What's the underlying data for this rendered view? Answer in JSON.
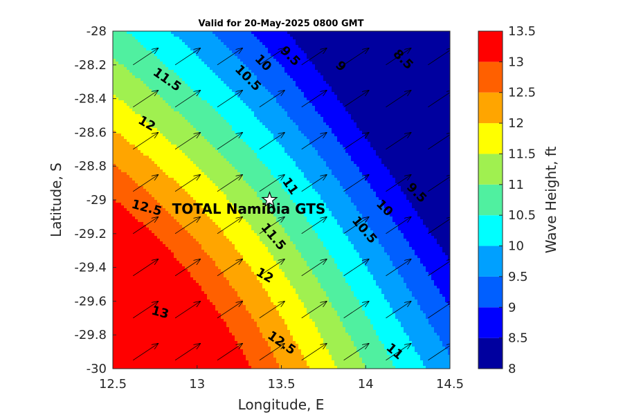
{
  "chart_data": {
    "type": "contour",
    "title": "Valid for 20-May-2025 0800 GMT",
    "xlabel": "Longitude, E",
    "ylabel": "Latitude, S",
    "xlim": [
      12.5,
      14.5
    ],
    "ylim": [
      -30,
      -28
    ],
    "xticks": [
      "12.5",
      "13",
      "13.5",
      "14",
      "14.5"
    ],
    "yticks": [
      "-28",
      "-28.2",
      "-28.4",
      "-28.6",
      "-28.8",
      "-29",
      "-29.2",
      "-29.4",
      "-29.6",
      "-29.8",
      "-30"
    ],
    "colorbar": {
      "label": "Wave Height, ft",
      "ticks": [
        "13.5",
        "13",
        "12.5",
        "12",
        "11.5",
        "11",
        "10.5",
        "10",
        "9.5",
        "9",
        "8.5",
        "8"
      ],
      "levels": [
        8,
        8.5,
        9,
        9.5,
        10,
        10.5,
        11,
        11.5,
        12,
        12.5,
        13,
        13.5
      ],
      "colors": [
        "#00009f",
        "#0000ff",
        "#005fff",
        "#00a0ff",
        "#00ffff",
        "#50f0a0",
        "#a0f050",
        "#ffff00",
        "#ffa500",
        "#ff6000",
        "#ff0000"
      ]
    },
    "contour_labels": [
      {
        "text": "8.5",
        "lon": 14.22,
        "lat": -28.17,
        "rot": 45
      },
      {
        "text": "9",
        "lon": 13.85,
        "lat": -28.21,
        "rot": 45
      },
      {
        "text": "9.5",
        "lon": 13.55,
        "lat": -28.15,
        "rot": 45
      },
      {
        "text": "10",
        "lon": 13.39,
        "lat": -28.19,
        "rot": 45
      },
      {
        "text": "10.5",
        "lon": 13.3,
        "lat": -28.28,
        "rot": 45
      },
      {
        "text": "11.5",
        "lon": 12.82,
        "lat": -28.29,
        "rot": 35
      },
      {
        "text": "12",
        "lon": 12.7,
        "lat": -28.55,
        "rot": 30
      },
      {
        "text": "12.5",
        "lon": 12.7,
        "lat": -29.05,
        "rot": 15
      },
      {
        "text": "13",
        "lon": 12.78,
        "lat": -29.67,
        "rot": 15
      },
      {
        "text": "11",
        "lon": 13.55,
        "lat": -28.92,
        "rot": 55
      },
      {
        "text": "11.5",
        "lon": 13.45,
        "lat": -29.22,
        "rot": 50
      },
      {
        "text": "12",
        "lon": 13.4,
        "lat": -29.45,
        "rot": 30
      },
      {
        "text": "12.5",
        "lon": 13.5,
        "lat": -29.85,
        "rot": 35
      },
      {
        "text": "10.5",
        "lon": 13.99,
        "lat": -29.18,
        "rot": 50
      },
      {
        "text": "10",
        "lon": 14.11,
        "lat": -29.05,
        "rot": 45
      },
      {
        "text": "9.5",
        "lon": 14.3,
        "lat": -28.96,
        "rot": 45
      },
      {
        "text": "11",
        "lon": 14.17,
        "lat": -29.9,
        "rot": 40
      }
    ],
    "site": {
      "name": "TOTAL Namibia GTS",
      "lon": 13.43,
      "lat": -29.0
    },
    "wave_direction": "arrows pointing north-east across the whole domain"
  }
}
